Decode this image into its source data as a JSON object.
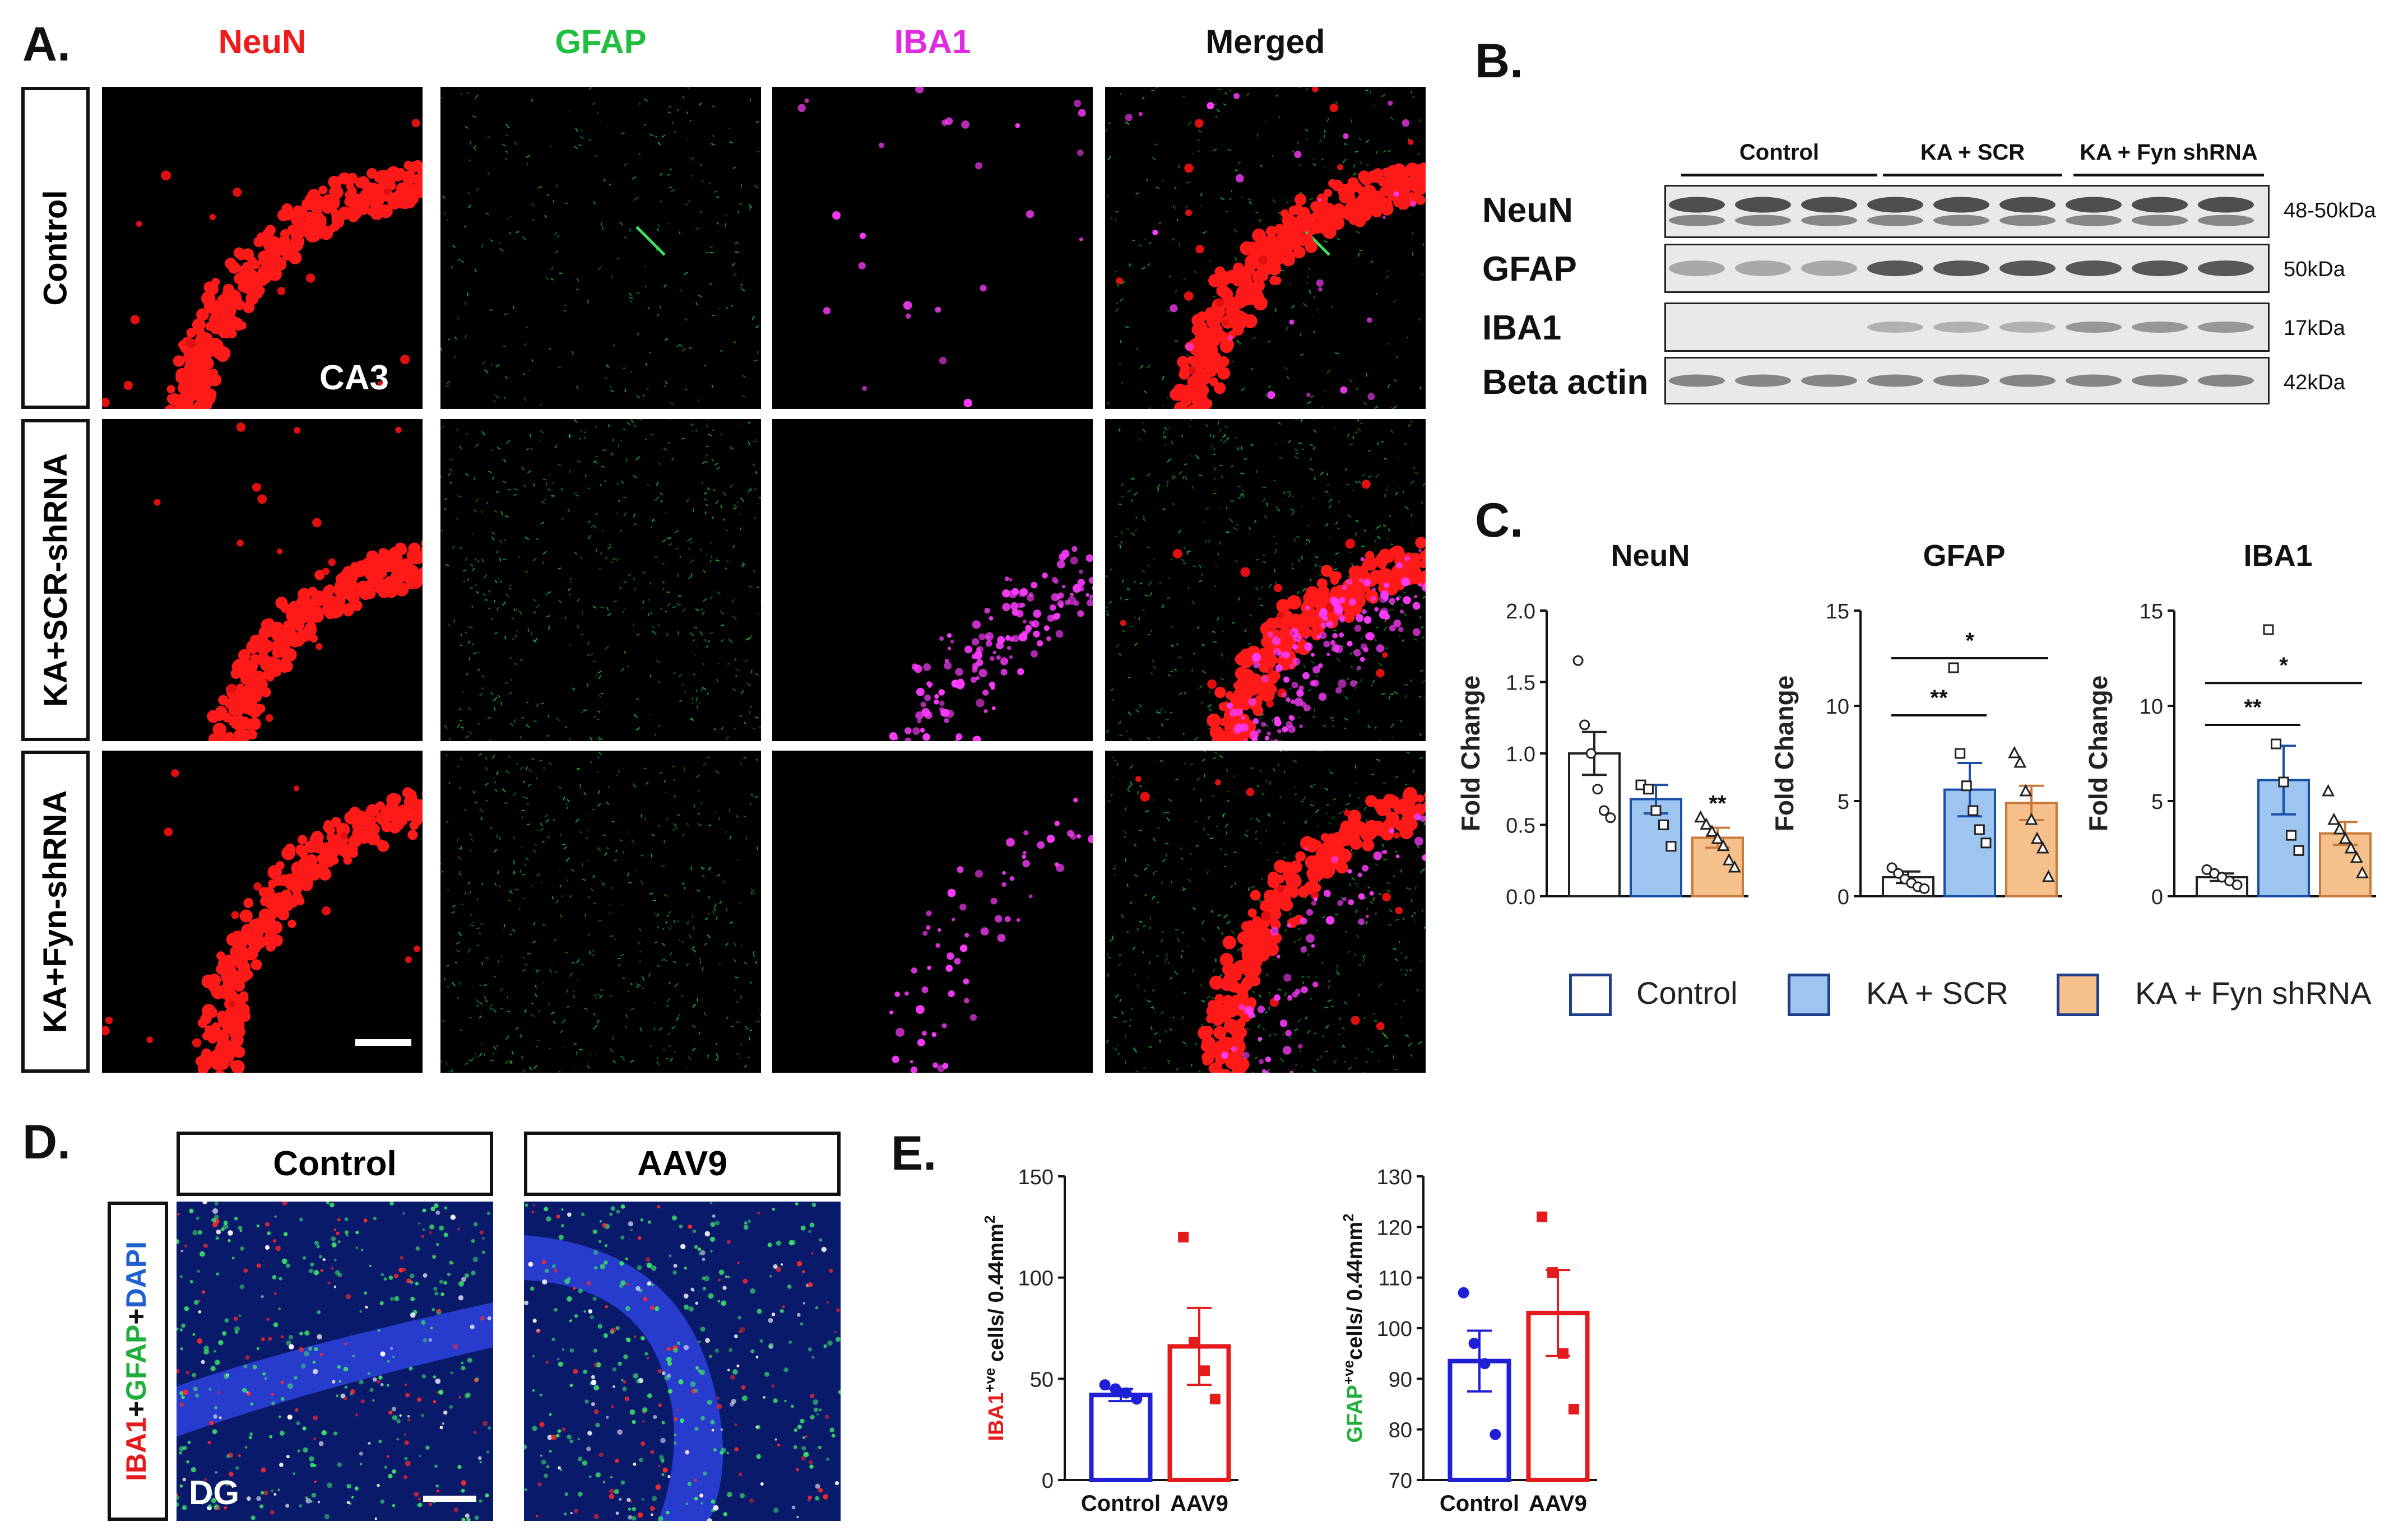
{
  "panels": {
    "A": "A.",
    "B": "B.",
    "C": "C.",
    "D": "D.",
    "E": "E."
  },
  "panelA": {
    "columns": [
      {
        "label": "NeuN",
        "color": "#ee1c1c"
      },
      {
        "label": "GFAP",
        "color": "#1fbf3f"
      },
      {
        "label": "IBA1",
        "color": "#e02ce0"
      },
      {
        "label": "Merged",
        "color": "#111111"
      }
    ],
    "rows": [
      "Control",
      "KA+SCR-shRNA",
      "KA+Fyn-shRNA"
    ],
    "region_label": "CA3"
  },
  "panelB": {
    "groups": [
      "Control",
      "KA + SCR",
      "KA + Fyn shRNA"
    ],
    "blots": [
      {
        "label": "NeuN",
        "kda": "48-50kDa"
      },
      {
        "label": "GFAP",
        "kda": "50kDa"
      },
      {
        "label": "IBA1",
        "kda": "17kDa"
      },
      {
        "label": "Beta actin",
        "kda": "42kDa"
      }
    ]
  },
  "panelC": {
    "legend": [
      {
        "label": "Control",
        "color": "#ffffff"
      },
      {
        "label": "KA + SCR",
        "color": "#9ec5f0"
      },
      {
        "label": "KA + Fyn shRNA",
        "color": "#f6c08c"
      }
    ]
  },
  "panelD": {
    "columns": [
      "Control",
      "AAV9"
    ],
    "side_label": [
      "IBA1",
      "+",
      "GFAP",
      "+",
      "DAPI"
    ],
    "side_colors": [
      "#e41a1c",
      "#111111",
      "#1fae3a",
      "#111111",
      "#1f5fd0"
    ],
    "region_label": "DG"
  },
  "chart_data": [
    {
      "id": "c-neun",
      "type": "bar",
      "title": "NeuN",
      "ylabel": "Fold Change",
      "ylim": [
        0,
        2.0
      ],
      "yticks": [
        "0.0",
        "0.5",
        "1.0",
        "1.5",
        "2.0"
      ],
      "categories": [
        "Control",
        "KA + SCR",
        "KA + Fyn shRNA"
      ],
      "values": [
        1.0,
        0.68,
        0.41
      ],
      "errors": [
        0.15,
        0.1,
        0.07
      ],
      "points": [
        [
          1.65,
          1.2,
          1.0,
          0.75,
          0.6,
          0.55
        ],
        [
          0.78,
          0.75,
          0.6,
          0.5,
          0.35
        ],
        [
          0.55,
          0.5,
          0.45,
          0.4,
          0.35,
          0.25,
          0.2
        ]
      ],
      "markers": [
        "circle",
        "square",
        "triangle"
      ],
      "annotations": [
        {
          "text": "**",
          "over": 2
        }
      ]
    },
    {
      "id": "c-gfap",
      "type": "bar",
      "title": "GFAP",
      "ylabel": "Fold Change",
      "ylim": [
        0,
        15
      ],
      "yticks": [
        "0",
        "5",
        "10",
        "15"
      ],
      "categories": [
        "Control",
        "KA + SCR",
        "KA + Fyn shRNA"
      ],
      "values": [
        1.0,
        5.6,
        4.9
      ],
      "errors": [
        0.3,
        1.4,
        0.9
      ],
      "points": [
        [
          1.5,
          1.2,
          0.9,
          0.7,
          0.5,
          0.4
        ],
        [
          12.0,
          7.5,
          5.8,
          4.5,
          3.5,
          2.8
        ],
        [
          7.5,
          7.0,
          5.5,
          4.0,
          3.0,
          2.5,
          1.0
        ]
      ],
      "markers": [
        "circle",
        "square",
        "triangle"
      ],
      "annotations": [
        {
          "text": "**",
          "from": 0,
          "to": 1,
          "y": 9.5
        },
        {
          "text": "*",
          "from": 0,
          "to": 2,
          "y": 12.5
        }
      ]
    },
    {
      "id": "c-iba1",
      "type": "bar",
      "title": "IBA1",
      "ylabel": "Fold Change",
      "ylim": [
        0,
        15
      ],
      "yticks": [
        "0",
        "5",
        "10",
        "15"
      ],
      "categories": [
        "Control",
        "KA + SCR",
        "KA + Fyn shRNA"
      ],
      "values": [
        1.0,
        6.1,
        3.3
      ],
      "errors": [
        0.2,
        1.8,
        0.6
      ],
      "points": [
        [
          1.4,
          1.2,
          1.0,
          0.8,
          0.6
        ],
        [
          14.0,
          8.0,
          6.0,
          3.2,
          2.4
        ],
        [
          5.5,
          4.0,
          3.5,
          3.0,
          2.5,
          2.0,
          1.2
        ]
      ],
      "markers": [
        "circle",
        "square",
        "triangle"
      ],
      "annotations": [
        {
          "text": "**",
          "from": 0,
          "to": 1,
          "y": 9.0
        },
        {
          "text": "*",
          "from": 0,
          "to": 2,
          "y": 11.2
        }
      ]
    },
    {
      "id": "e-iba1",
      "type": "bar",
      "ylabel_parts": [
        "IBA1",
        "+ve",
        " cells/ 0.44mm",
        "2"
      ],
      "ylabel_color": "#e41a1c",
      "ylim": [
        0,
        150
      ],
      "yticks": [
        "0",
        "50",
        "100",
        "150"
      ],
      "categories": [
        "Control",
        "AAV9"
      ],
      "values": [
        42,
        66
      ],
      "errors": [
        3,
        19
      ],
      "points": [
        [
          47,
          45,
          43,
          40
        ],
        [
          120,
          68,
          54,
          40
        ]
      ],
      "colors": [
        "#1f1fd6",
        "#e41a1c"
      ],
      "markers": [
        "dot",
        "square"
      ]
    },
    {
      "id": "e-gfap",
      "type": "bar",
      "ylabel_parts": [
        "GFAP",
        "+ve",
        "cells/ 0.44mm",
        "2"
      ],
      "ylabel_color": "#1fae3a",
      "ylim": [
        70,
        130
      ],
      "yticks": [
        "70",
        "80",
        "90",
        "100",
        "110",
        "120",
        "130"
      ],
      "categories": [
        "Control",
        "AAV9"
      ],
      "values": [
        93.5,
        103
      ],
      "errors": [
        6,
        8.5
      ],
      "points": [
        [
          107,
          97,
          93,
          79
        ],
        [
          122,
          111,
          95,
          84
        ]
      ],
      "colors": [
        "#1f1fd6",
        "#e41a1c"
      ],
      "markers": [
        "dot",
        "square"
      ]
    }
  ]
}
